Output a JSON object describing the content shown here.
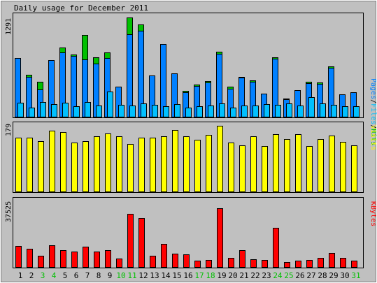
{
  "chart_data": [
    {
      "panel": "hits_files_pages",
      "type": "bar",
      "title": "Daily usage for December 2011",
      "ymax_label": "1291",
      "legend": {
        "pages": "Pages",
        "files": "Files",
        "hits": "Hits",
        "sep1": "/",
        "sep2": "/"
      },
      "categories": [
        "1",
        "2",
        "3",
        "4",
        "5",
        "6",
        "7",
        "8",
        "9",
        "10",
        "11",
        "12",
        "13",
        "14",
        "15",
        "16",
        "17",
        "18",
        "19",
        "20",
        "21",
        "22",
        "23",
        "24",
        "25",
        "26",
        "27",
        "28",
        "29",
        "30",
        "31"
      ],
      "weekend_days": [
        "3",
        "4",
        "10",
        "11",
        "17",
        "18",
        "24",
        "25",
        "31"
      ],
      "ylim": [
        0,
        1291
      ],
      "series": [
        {
          "key": "hits",
          "values": [
            746,
            535,
            446,
            718,
            882,
            791,
            1041,
            756,
            816,
            385,
            1264,
            1172,
            528,
            924,
            555,
            328,
            414,
            457,
            829,
            382,
            507,
            459,
            290,
            756,
            233,
            340,
            449,
            433,
            642,
            283,
            314
          ]
        },
        {
          "key": "files",
          "values": [
            746,
            511,
            344,
            718,
            821,
            777,
            731,
            680,
            747,
            385,
            1053,
            1095,
            528,
            924,
            555,
            308,
            393,
            432,
            803,
            357,
            498,
            445,
            290,
            738,
            222,
            340,
            428,
            421,
            622,
            283,
            314
          ]
        },
        {
          "key": "pages",
          "values": [
            180,
            120,
            190,
            160,
            180,
            130,
            190,
            140,
            320,
            150,
            140,
            170,
            150,
            130,
            160,
            120,
            130,
            140,
            170,
            120,
            140,
            140,
            160,
            150,
            170,
            140,
            250,
            170,
            150,
            130,
            130
          ]
        }
      ]
    },
    {
      "panel": "visits",
      "type": "bar",
      "title": "",
      "series_label": "Visits",
      "ymax_label": "179",
      "ylim": [
        0,
        179
      ],
      "values": [
        146,
        146,
        136,
        163,
        160,
        131,
        136,
        149,
        157,
        149,
        129,
        145,
        145,
        149,
        166,
        148,
        139,
        152,
        178,
        132,
        125,
        148,
        122,
        155,
        141,
        154,
        122,
        142,
        151,
        133,
        125
      ]
    },
    {
      "panel": "kbytes",
      "type": "bar",
      "title": "",
      "series_label": "KBytes",
      "ymax_label": "37525",
      "ylim": [
        0,
        37525
      ],
      "values": [
        12000,
        10300,
        6300,
        12400,
        9600,
        8500,
        11600,
        8500,
        9400,
        4700,
        30000,
        27800,
        6200,
        13000,
        7700,
        7200,
        3400,
        4100,
        33000,
        5200,
        9400,
        4400,
        3900,
        22200,
        2600,
        3500,
        3900,
        5100,
        7900,
        5000,
        3700
      ]
    }
  ]
}
